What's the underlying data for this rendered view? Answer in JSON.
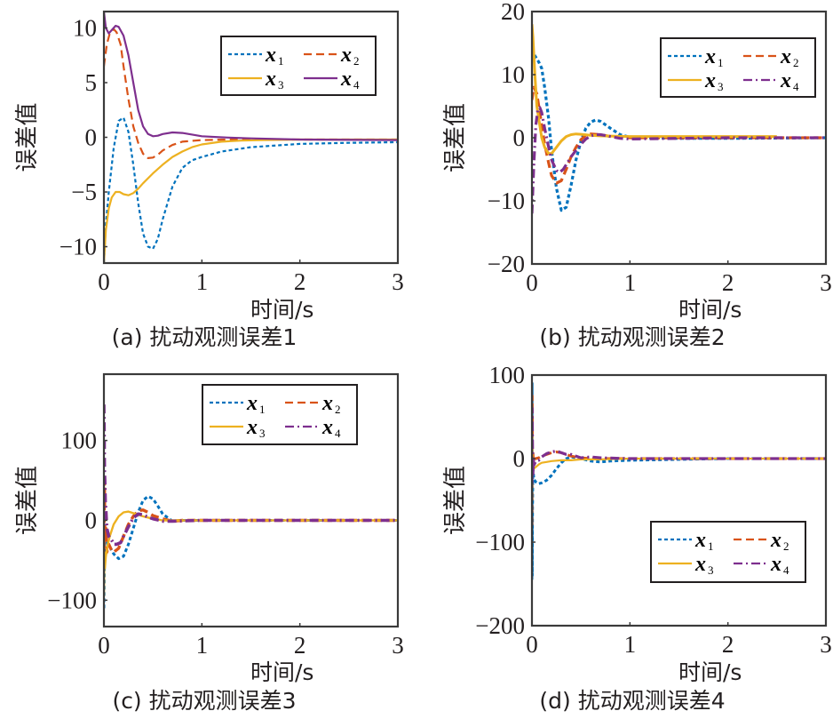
{
  "colors": {
    "x1": "#0072BD",
    "x2": "#D95319",
    "x3": "#EDB120",
    "x4": "#7E2F8E",
    "axis": "#3a3a3a"
  },
  "chart_data": [
    {
      "type": "line",
      "id": "a",
      "caption": "(a) 扰动观测误差1",
      "xlabel": "时间/s",
      "ylabel": "误差值",
      "xlim": [
        0,
        3
      ],
      "ylim": [
        -11.5,
        11.5
      ],
      "xticks": [
        "0",
        "1",
        "2",
        "3"
      ],
      "xtick_values": [
        0,
        1,
        2,
        3
      ],
      "yticks": [
        "10",
        "5",
        "0",
        "−5",
        "−10"
      ],
      "ytick_values": [
        10,
        5,
        0,
        -5,
        -10
      ],
      "legend": {
        "position": "top-right",
        "entries": [
          {
            "base": "x",
            "sub": "1"
          },
          {
            "base": "x",
            "sub": "2"
          },
          {
            "base": "x",
            "sub": "3"
          },
          {
            "base": "x",
            "sub": "4"
          }
        ]
      },
      "series": [
        {
          "name": "x1",
          "style": "dotted",
          "x": [
            0,
            0.02,
            0.05,
            0.1,
            0.15,
            0.2,
            0.25,
            0.3,
            0.35,
            0.4,
            0.45,
            0.5,
            0.55,
            0.6,
            0.7,
            0.8,
            0.9,
            1.0,
            1.2,
            1.5,
            2.0,
            2.5,
            3.0
          ],
          "y": [
            -11.5,
            -8,
            -5,
            -1,
            1.5,
            1.8,
            0.5,
            -2.5,
            -6,
            -8.8,
            -10,
            -10.2,
            -9.3,
            -7.5,
            -4.5,
            -2.8,
            -2.1,
            -1.8,
            -1.3,
            -0.9,
            -0.6,
            -0.5,
            -0.45
          ]
        },
        {
          "name": "x2",
          "style": "dashed",
          "x": [
            0,
            0.03,
            0.06,
            0.1,
            0.13,
            0.17,
            0.2,
            0.25,
            0.3,
            0.35,
            0.4,
            0.45,
            0.5,
            0.55,
            0.6,
            0.7,
            0.8,
            1.0,
            1.3,
            1.6,
            2.0,
            3.0
          ],
          "y": [
            6.5,
            8.5,
            9.5,
            9.9,
            9.6,
            8.5,
            6.5,
            3.5,
            1.0,
            -0.5,
            -1.5,
            -1.9,
            -1.85,
            -1.6,
            -1.2,
            -0.7,
            -0.4,
            -0.25,
            -0.2,
            -0.2,
            -0.2,
            -0.2
          ]
        },
        {
          "name": "x3",
          "style": "solid",
          "x": [
            0,
            0.02,
            0.05,
            0.08,
            0.12,
            0.16,
            0.2,
            0.25,
            0.3,
            0.35,
            0.4,
            0.5,
            0.6,
            0.7,
            0.8,
            0.9,
            1.0,
            1.2,
            1.4,
            1.6,
            2.0,
            3.0
          ],
          "y": [
            -11.5,
            -8.5,
            -6.5,
            -5.5,
            -5.0,
            -5.0,
            -5.2,
            -5.3,
            -5.1,
            -4.7,
            -4.2,
            -3.3,
            -2.5,
            -1.8,
            -1.3,
            -0.9,
            -0.65,
            -0.4,
            -0.3,
            -0.25,
            -0.2,
            -0.2
          ]
        },
        {
          "name": "x4",
          "style": "solid",
          "x": [
            0,
            0.02,
            0.05,
            0.08,
            0.12,
            0.15,
            0.2,
            0.25,
            0.3,
            0.35,
            0.4,
            0.45,
            0.5,
            0.55,
            0.6,
            0.7,
            0.8,
            0.9,
            1.0,
            1.2,
            1.5,
            2.0,
            3.0
          ],
          "y": [
            11.5,
            10,
            9.5,
            9.8,
            10.2,
            10.1,
            9.3,
            7.5,
            5.0,
            2.5,
            1.0,
            0.3,
            0.1,
            0.15,
            0.3,
            0.45,
            0.4,
            0.25,
            0.1,
            0.0,
            -0.1,
            -0.2,
            -0.25
          ]
        }
      ]
    },
    {
      "type": "line",
      "id": "b",
      "caption": "(b) 扰动观测误差2",
      "xlabel": "时间/s",
      "ylabel": "误差值",
      "xlim": [
        0,
        3
      ],
      "ylim": [
        -20,
        20
      ],
      "xticks": [
        "0",
        "1",
        "2",
        "3"
      ],
      "xtick_values": [
        0,
        1,
        2,
        3
      ],
      "yticks": [
        "20",
        "10",
        "0",
        "−10",
        "−20"
      ],
      "ytick_values": [
        20,
        10,
        0,
        -10,
        -20
      ],
      "legend": {
        "position": "top-right",
        "entries": [
          {
            "base": "x",
            "sub": "1"
          },
          {
            "base": "x",
            "sub": "2"
          },
          {
            "base": "x",
            "sub": "3"
          },
          {
            "base": "x",
            "sub": "4"
          }
        ]
      },
      "series": [
        {
          "name": "x1",
          "style": "dotted",
          "x": [
            0,
            0.03,
            0.07,
            0.1,
            0.13,
            0.17,
            0.2,
            0.25,
            0.3,
            0.35,
            0.4,
            0.45,
            0.5,
            0.55,
            0.6,
            0.65,
            0.7,
            0.8,
            0.9,
            1.0,
            1.5,
            2.0,
            3.0
          ],
          "y": [
            14,
            13,
            12,
            11,
            8,
            3,
            -2,
            -8,
            -11.5,
            -11,
            -7.5,
            -3.5,
            -0.5,
            1.5,
            2.5,
            2.8,
            2.6,
            1.5,
            0.5,
            0.1,
            -0.1,
            -0.1,
            0
          ]
        },
        {
          "name": "x2",
          "style": "dashed",
          "x": [
            0,
            0.02,
            0.05,
            0.08,
            0.1,
            0.13,
            0.17,
            0.2,
            0.25,
            0.3,
            0.35,
            0.4,
            0.45,
            0.5,
            0.55,
            0.6,
            0.7,
            0.8,
            1.0,
            1.5,
            3.0
          ],
          "y": [
            6,
            8,
            7,
            4,
            2,
            -1,
            -4,
            -6,
            -7.2,
            -6.8,
            -5,
            -3,
            -1.5,
            -0.3,
            0.4,
            0.6,
            0.5,
            0.2,
            0,
            0,
            0
          ]
        },
        {
          "name": "x3",
          "style": "solid",
          "x": [
            0,
            0.01,
            0.03,
            0.05,
            0.08,
            0.1,
            0.13,
            0.17,
            0.2,
            0.25,
            0.3,
            0.35,
            0.4,
            0.45,
            0.5,
            0.6,
            0.7,
            1.0,
            1.5,
            2.0,
            2.5
          ],
          "y": [
            18,
            16,
            10,
            5,
            2,
            0,
            -1.5,
            -2.5,
            -2.5,
            -1.5,
            -0.5,
            0.2,
            0.5,
            0.6,
            0.55,
            0.4,
            0.3,
            0.2,
            0.2,
            0.2,
            0.2
          ]
        },
        {
          "name": "x4",
          "style": "dashdot",
          "x": [
            0,
            0.02,
            0.04,
            0.06,
            0.08,
            0.1,
            0.13,
            0.17,
            0.2,
            0.25,
            0.28,
            0.32,
            0.36,
            0.4,
            0.45,
            0.5,
            0.55,
            0.6,
            0.65,
            0.7,
            0.8,
            0.9,
            1.0,
            1.5,
            2.0,
            3.0
          ],
          "y": [
            -12,
            -4,
            2,
            4.5,
            4.8,
            4,
            1.5,
            -1.5,
            -3.5,
            -5.2,
            -5.5,
            -5.0,
            -4.0,
            -3.0,
            -2.0,
            -1.0,
            -0.2,
            0.3,
            0.5,
            0.5,
            0.2,
            -0.1,
            -0.2,
            -0.1,
            0,
            0
          ]
        }
      ]
    },
    {
      "type": "line",
      "id": "c",
      "caption": "(c) 扰动观测误差3",
      "xlabel": "时间/s",
      "ylabel": "误差值",
      "xlim": [
        0,
        3
      ],
      "ylim": [
        -133,
        183
      ],
      "xticks": [
        "0",
        "1",
        "2",
        "3"
      ],
      "xtick_values": [
        0,
        1,
        2,
        3
      ],
      "yticks": [
        "100",
        "0",
        "−100"
      ],
      "ytick_values": [
        100,
        0,
        -100
      ],
      "legend": {
        "position": "top-right",
        "entries": [
          {
            "base": "x",
            "sub": "1"
          },
          {
            "base": "x",
            "sub": "2"
          },
          {
            "base": "x",
            "sub": "3"
          },
          {
            "base": "x",
            "sub": "4"
          }
        ]
      },
      "series": [
        {
          "name": "x1",
          "style": "dotted",
          "x": [
            0,
            0.005,
            0.01,
            0.02,
            0.04,
            0.07,
            0.1,
            0.15,
            0.2,
            0.25,
            0.3,
            0.35,
            0.4,
            0.45,
            0.5,
            0.55,
            0.6,
            0.7,
            0.8,
            1.0,
            1.5,
            2.0,
            3.0
          ],
          "y": [
            -110,
            -60,
            -10,
            -20,
            -30,
            -35,
            -42,
            -48,
            -45,
            -30,
            -10,
            10,
            25,
            30,
            27,
            18,
            8,
            -1,
            0,
            0,
            0,
            0,
            0
          ]
        },
        {
          "name": "x2",
          "style": "dashed",
          "x": [
            0,
            0.005,
            0.01,
            0.02,
            0.03,
            0.05,
            0.08,
            0.1,
            0.15,
            0.2,
            0.25,
            0.3,
            0.35,
            0.4,
            0.45,
            0.5,
            0.6,
            0.7,
            0.8,
            1.0,
            2.0,
            3.0
          ],
          "y": [
            -50,
            50,
            -20,
            -10,
            -40,
            -30,
            -38,
            -40,
            -35,
            -20,
            -5,
            5,
            12,
            13,
            10,
            6,
            2,
            -1,
            0,
            0,
            0,
            0
          ]
        },
        {
          "name": "x3",
          "style": "solid",
          "x": [
            0,
            0.005,
            0.01,
            0.02,
            0.04,
            0.06,
            0.1,
            0.15,
            0.2,
            0.25,
            0.3,
            0.35,
            0.4,
            0.5,
            0.6,
            0.7,
            1.0,
            2.0,
            3.0
          ],
          "y": [
            -95,
            -40,
            -60,
            -45,
            -30,
            -20,
            -5,
            5,
            10,
            11,
            9,
            7,
            5,
            2,
            0,
            0,
            0,
            0,
            0
          ]
        },
        {
          "name": "x4",
          "style": "dashdot",
          "x": [
            0,
            0.003,
            0.006,
            0.01,
            0.015,
            0.02,
            0.03,
            0.05,
            0.08,
            0.1,
            0.13,
            0.17,
            0.2,
            0.25,
            0.3,
            0.35,
            0.4,
            0.45,
            0.5,
            0.6,
            0.7,
            1.0,
            2.0,
            3.0
          ],
          "y": [
            145,
            120,
            60,
            50,
            20,
            15,
            -10,
            -20,
            -25,
            -30,
            -30,
            -28,
            -20,
            -8,
            3,
            8,
            7,
            4,
            2,
            -1,
            -1,
            0,
            0,
            0
          ]
        }
      ]
    },
    {
      "type": "line",
      "id": "d",
      "caption": "(d) 扰动观测误差4",
      "xlabel": "时间/s",
      "ylabel": "误差值",
      "xlim": [
        0,
        3
      ],
      "ylim": [
        -200,
        100
      ],
      "xticks": [
        "0",
        "1",
        "2",
        "3"
      ],
      "xtick_values": [
        0,
        1,
        2,
        3
      ],
      "yticks": [
        "100",
        "0",
        "−100",
        "−200"
      ],
      "ytick_values": [
        100,
        0,
        -100,
        -200
      ],
      "legend": {
        "position": "bottom-right",
        "entries": [
          {
            "base": "x",
            "sub": "1"
          },
          {
            "base": "x",
            "sub": "2"
          },
          {
            "base": "x",
            "sub": "3"
          },
          {
            "base": "x",
            "sub": "4"
          }
        ]
      },
      "series": [
        {
          "name": "x1",
          "style": "dotted",
          "x": [
            0,
            0.002,
            0.004,
            0.006,
            0.01,
            0.02,
            0.04,
            0.07,
            0.1,
            0.15,
            0.2,
            0.25,
            0.3,
            0.35,
            0.4,
            0.5,
            0.6,
            0.7,
            0.8,
            1.0,
            1.5,
            2.0,
            3.0
          ],
          "y": [
            -145,
            90,
            -140,
            -60,
            -10,
            -25,
            -28,
            -30,
            -29,
            -26,
            -20,
            -12,
            -5,
            0,
            2,
            0,
            -3,
            -4,
            -3,
            -2,
            -1,
            0,
            0
          ]
        },
        {
          "name": "x2",
          "style": "dashed",
          "x": [
            0,
            0.003,
            0.006,
            0.01,
            0.015,
            0.02,
            0.04,
            0.07,
            0.1,
            0.15,
            0.2,
            0.25,
            0.3,
            0.35,
            0.4,
            0.5,
            0.6,
            0.7,
            1.0,
            2.0,
            3.0
          ],
          "y": [
            -80,
            75,
            -20,
            10,
            -5,
            0,
            0,
            1,
            3,
            5,
            7,
            8,
            7,
            5,
            3,
            1,
            0,
            0,
            0,
            0,
            0
          ]
        },
        {
          "name": "x3",
          "style": "solid",
          "x": [
            0,
            0.003,
            0.006,
            0.01,
            0.02,
            0.04,
            0.07,
            0.1,
            0.15,
            0.2,
            0.3,
            0.4,
            0.5,
            0.7,
            1.0,
            2.0,
            3.0
          ],
          "y": [
            -50,
            30,
            -20,
            -15,
            -12,
            -10,
            -7,
            -5,
            -4,
            -3,
            -2,
            -2,
            -1,
            -1,
            0,
            0,
            0
          ]
        },
        {
          "name": "x4",
          "style": "dashdot",
          "x": [
            0,
            0.003,
            0.006,
            0.01,
            0.015,
            0.02,
            0.04,
            0.07,
            0.1,
            0.15,
            0.2,
            0.25,
            0.3,
            0.35,
            0.4,
            0.45,
            0.5,
            0.6,
            0.7,
            1.0,
            2.0,
            3.0
          ],
          "y": [
            -30,
            60,
            10,
            -20,
            0,
            -8,
            -3,
            -2,
            2,
            6,
            8,
            9,
            7,
            5,
            5,
            3,
            1,
            2,
            1,
            0,
            0,
            0
          ]
        }
      ]
    }
  ]
}
